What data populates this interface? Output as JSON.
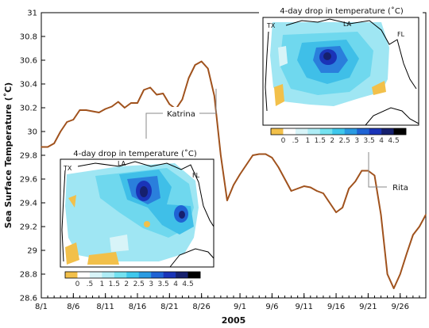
{
  "chart_data": {
    "type": "line",
    "title": "",
    "xlabel": "2005",
    "ylabel": "Sea Surface Temperature (˚C)",
    "ylim": [
      28.6,
      31.0
    ],
    "y_ticks": [
      "31",
      "30.8",
      "30.6",
      "30.4",
      "30.2",
      "30",
      "29.8",
      "29.6",
      "29.4",
      "29.2",
      "29",
      "28.8",
      "28.6"
    ],
    "x_tick_labels": [
      "8/1",
      "8/6",
      "8/11",
      "8/16",
      "8/21",
      "8/26",
      "9/1",
      "9/6",
      "9/11",
      "9/16",
      "9/21",
      "9/26"
    ],
    "grid": false,
    "series": [
      {
        "color": "#a0521d",
        "x": [
          "8/1",
          "8/2",
          "8/3",
          "8/4",
          "8/5",
          "8/6",
          "8/7",
          "8/8",
          "8/9",
          "8/10",
          "8/11",
          "8/12",
          "8/13",
          "8/14",
          "8/15",
          "8/16",
          "8/17",
          "8/18",
          "8/19",
          "8/20",
          "8/21",
          "8/22",
          "8/23",
          "8/24",
          "8/25",
          "8/26",
          "8/27",
          "8/28",
          "8/29",
          "8/30",
          "8/31",
          "9/1",
          "9/2",
          "9/3",
          "9/4",
          "9/5",
          "9/6",
          "9/7",
          "9/8",
          "9/9",
          "9/10",
          "9/11",
          "9/12",
          "9/13",
          "9/14",
          "9/15",
          "9/16",
          "9/17",
          "9/18",
          "9/19",
          "9/20",
          "9/21",
          "9/22",
          "9/23",
          "9/24",
          "9/25",
          "9/26",
          "9/27",
          "9/28",
          "9/29",
          "9/30"
        ],
        "values": [
          29.87,
          29.87,
          29.9,
          30.0,
          30.08,
          30.1,
          30.18,
          30.18,
          30.17,
          30.16,
          30.19,
          30.21,
          30.25,
          30.2,
          30.24,
          30.24,
          30.35,
          30.37,
          30.31,
          30.32,
          30.23,
          30.19,
          30.27,
          30.45,
          30.56,
          30.59,
          30.53,
          30.3,
          29.8,
          29.42,
          29.55,
          29.64,
          29.72,
          29.8,
          29.81,
          29.81,
          29.78,
          29.7,
          29.6,
          29.5,
          29.52,
          29.54,
          29.53,
          29.5,
          29.48,
          29.4,
          29.32,
          29.36,
          29.52,
          29.58,
          29.67,
          29.67,
          29.63,
          29.3,
          28.8,
          28.68,
          28.8,
          28.97,
          29.13,
          29.2,
          29.3
        ]
      }
    ],
    "annotations": [
      "Katrina",
      "Rita"
    ],
    "insets": [
      {
        "title": "4-day drop in temperature (˚C)",
        "state_labels": [
          "TX",
          "LA",
          "FL"
        ],
        "colorbar_labels": [
          "0",
          ".5",
          "1",
          "1.5",
          "2",
          "2.5",
          "3",
          "3.5",
          "4",
          "4.5"
        ],
        "colorbar_colors": [
          "#f2c04a",
          "#ffffff",
          "#d8f4f8",
          "#aeecf5",
          "#74e2f0",
          "#3fc8ec",
          "#2a9be2",
          "#1f63d4",
          "#1a34b8",
          "#16206e",
          "#000000"
        ]
      },
      {
        "title": "4-day drop in temperature (˚C)",
        "state_labels": [
          "TX",
          "LA",
          "FL"
        ],
        "colorbar_labels": [
          "0",
          ".5",
          "1",
          "1.5",
          "2",
          "2.5",
          "3",
          "3.5",
          "4",
          "4.5"
        ],
        "colorbar_colors": [
          "#f2c04a",
          "#ffffff",
          "#d8f4f8",
          "#aeecf5",
          "#74e2f0",
          "#3fc8ec",
          "#2a9be2",
          "#1f63d4",
          "#1a34b8",
          "#16206e",
          "#000000"
        ]
      }
    ]
  }
}
